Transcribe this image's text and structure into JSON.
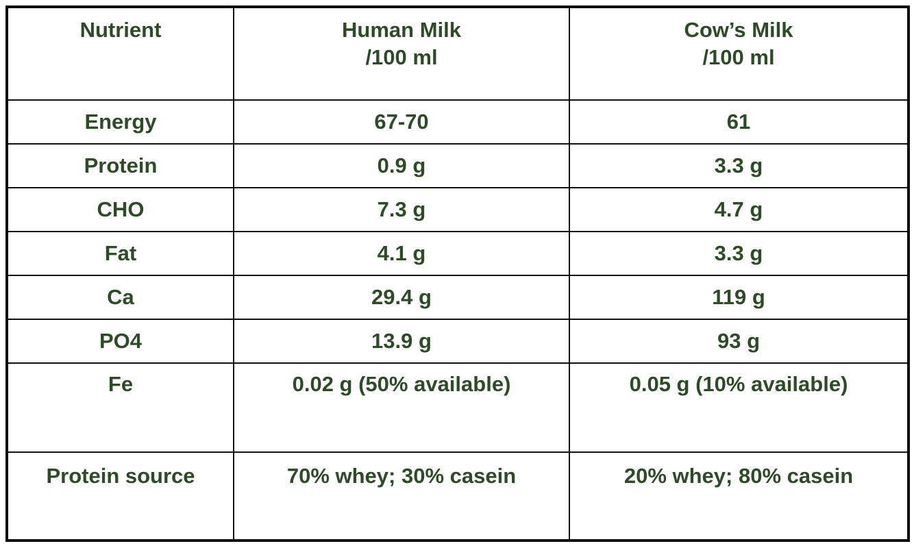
{
  "colors": {
    "text": "#2E4B27",
    "border": "#111111",
    "background": "#FFFFFF"
  },
  "chart_data": {
    "type": "table",
    "title": "",
    "columns": [
      "Nutrient",
      "Human Milk /100 ml",
      "Cow’s Milk /100 ml"
    ],
    "header": {
      "col1": "Nutrient",
      "col2_line1": "Human Milk",
      "col2_line2": "/100 ml",
      "col3_line1": "Cow’s Milk",
      "col3_line2": "/100 ml"
    },
    "rows": [
      {
        "nutrient": "Energy",
        "human": "67-70",
        "cow": "61"
      },
      {
        "nutrient": "Protein",
        "human": "0.9 g",
        "cow": "3.3 g"
      },
      {
        "nutrient": "CHO",
        "human": "7.3 g",
        "cow": "4.7 g"
      },
      {
        "nutrient": "Fat",
        "human": "4.1 g",
        "cow": "3.3 g"
      },
      {
        "nutrient": "Ca",
        "human": "29.4 g",
        "cow": "119 g"
      },
      {
        "nutrient": "PO4",
        "human": "13.9 g",
        "cow": "93 g"
      },
      {
        "nutrient": "Fe",
        "human": "0.02 g (50% available)",
        "cow": "0.05 g (10% available)"
      },
      {
        "nutrient": "Protein source",
        "human": "70% whey; 30% casein",
        "cow": "20% whey; 80% casein"
      }
    ]
  }
}
